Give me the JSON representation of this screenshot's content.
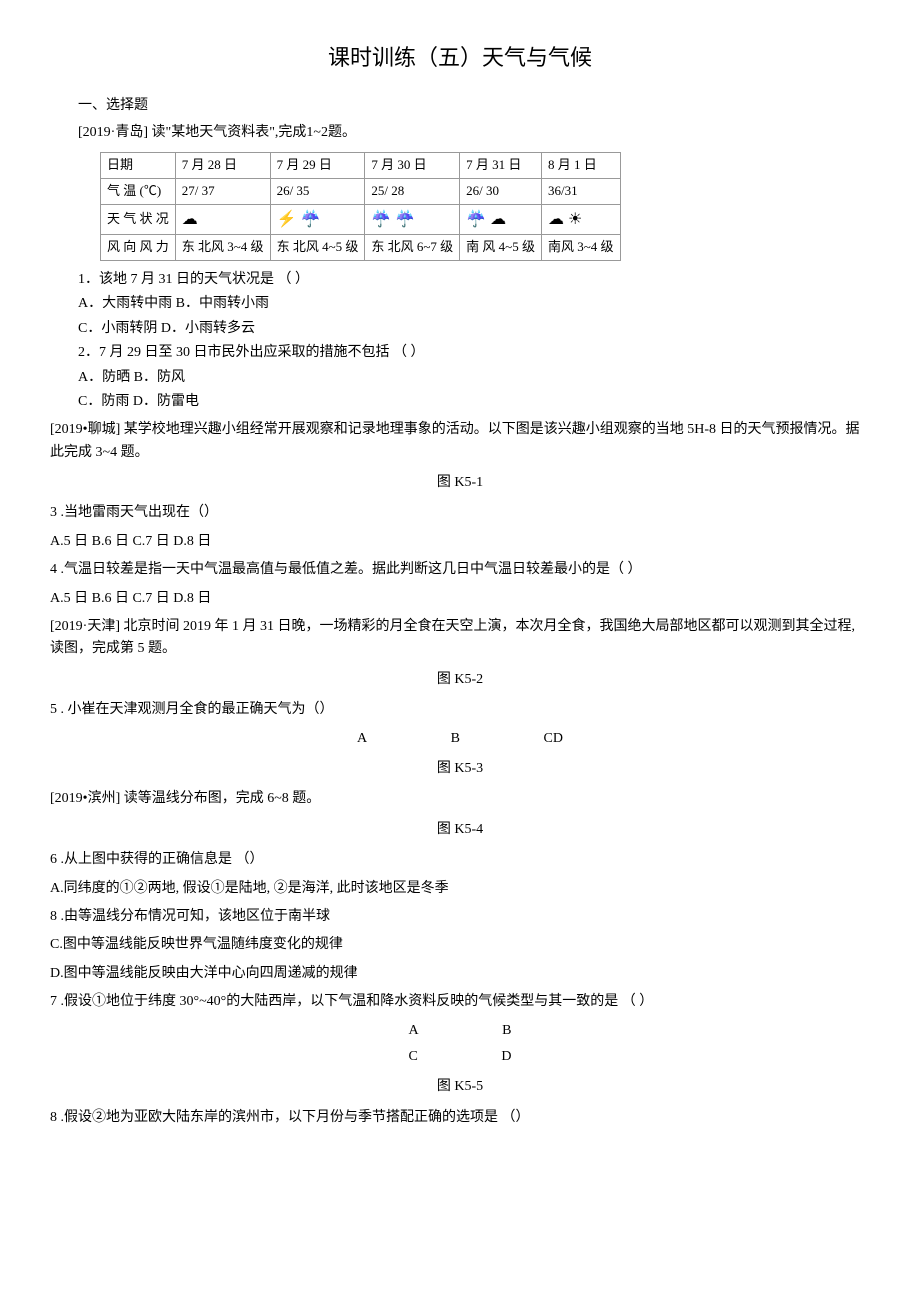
{
  "title": "课时训练（五）天气与气候",
  "section1": "一、选择题",
  "context1": "[2019·青岛] 读\"某地天气资料表\",完成1~2题。",
  "table": {
    "headers": [
      "日期",
      "7 月 28 日",
      "7 月 29 日",
      "7 月 30 日",
      "7 月 31 日",
      "8 月 1 日"
    ],
    "rows": [
      {
        "label": "气 温 (℃)",
        "cells": [
          "27/ 37",
          "26/ 35",
          "25/ 28",
          "26/ 30",
          "36/31"
        ]
      },
      {
        "label": "天 气 状 况",
        "cells": [
          "☁",
          "⚡ ☔",
          "☔ ☔",
          "☔ ☁",
          "☁ ☀"
        ]
      },
      {
        "label": "风 向 风 力",
        "cells": [
          "东 北风 3~4 级",
          "东 北风 4~5 级",
          "东 北风 6~7 级",
          "南 风 4~5 级",
          "南风 3~4 级"
        ]
      }
    ]
  },
  "q1": {
    "text": "1．该地 7 月 31 日的天气状况是  （    ）",
    "opts1": "A．大雨转中雨   B．中雨转小雨",
    "opts2": "C．小雨转阴     D．小雨转多云"
  },
  "q2": {
    "text": "2．7 月 29 日至 30 日市民外出应采取的措施不包括  （     ）",
    "opts1": "A．防晒     B．防风",
    "opts2": "C．防雨     D．防雷电"
  },
  "context2": "[2019•聊城] 某学校地理兴趣小组经常开展观察和记录地理事象的活动。以下图是该兴趣小组观察的当地 5H-8 日的天气预报情况。据此完成 3~4 题。",
  "fig1": "图 K5-1",
  "q3": {
    "text": "3  .当地雷雨天气出现在（）",
    "opts": "A.5 日 B.6 日 C.7 日 D.8 日"
  },
  "q4": {
    "text": "4  .气温日较差是指一天中气温最高值与最低值之差。据此判断这几日中气温日较差最小的是（          ）",
    "opts": "A.5 日 B.6 日 C.7 日 D.8 日"
  },
  "context3": "[2019·天津] 北京时间 2019 年 1 月 31 日晚，一场精彩的月全食在天空上演，本次月全食，我国绝大局部地区都可以观测到其全过程, 读图，完成第 5 题。",
  "fig2": "图 K5-2",
  "q5": {
    "text": "5  . 小崔在天津观测月全食的最正确天气为（）",
    "opts": {
      "a": "A",
      "b": "B",
      "cd": "CD"
    }
  },
  "fig3": "图 K5-3",
  "context4": "[2019•滨州] 读等温线分布图，完成 6~8 题。",
  "fig4": "图 K5-4",
  "q6": {
    "text": "6  .从上图中获得的正确信息是      （）",
    "optA": "A.同纬度的①②两地, 假设①是陆地, ②是海洋, 此时该地区是冬季",
    "optB": "8  .由等温线分布情况可知，该地区位于南半球",
    "optC": "C.图中等温线能反映世界气温随纬度变化的规律",
    "optD": "D.图中等温线能反映由大洋中心向四周递减的规律"
  },
  "q7": {
    "text": "7  .假设①地位于纬度 30°~40°的大陆西岸，以下气温和降水资料反映的气候类型与其一致的是           （   ）",
    "opts": {
      "a": "A",
      "b": "B",
      "c": "C",
      "d": "D"
    }
  },
  "fig5": "图 K5-5",
  "q8": {
    "text": "8  .假设②地为亚欧大陆东岸的滨州市，以下月份与季节搭配正确的选项是        （）"
  }
}
